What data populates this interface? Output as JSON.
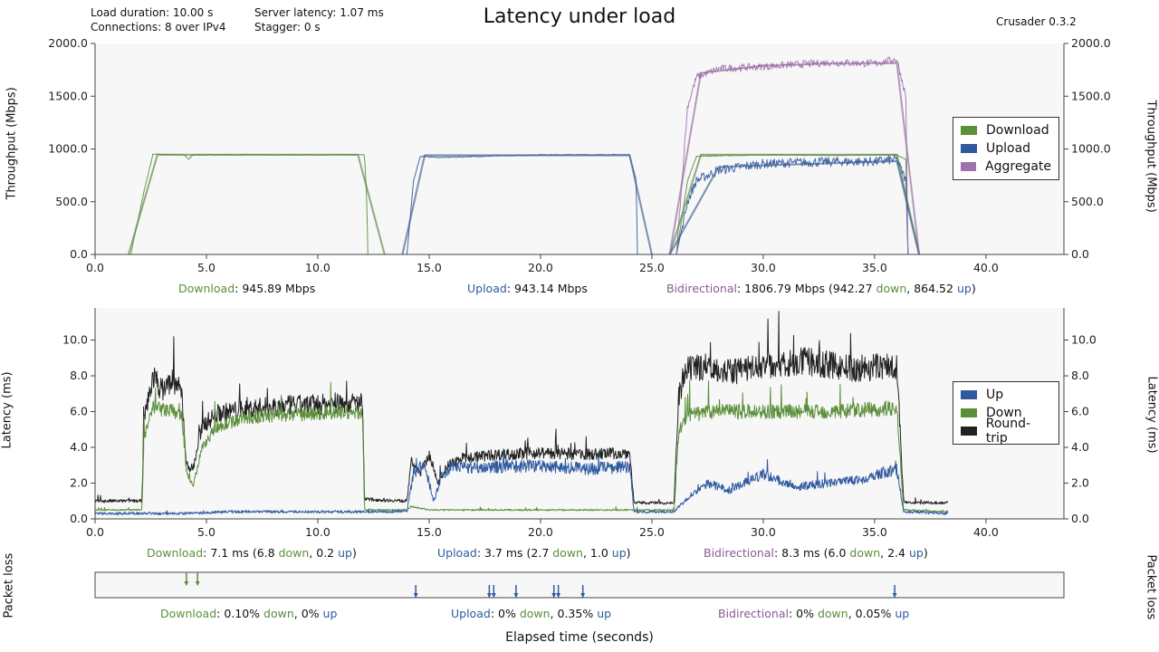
{
  "header": {
    "title": "Latency under load",
    "app_version": "Crusader 0.3.2",
    "load_duration": "Load duration: 10.00 s",
    "connections": "Connections: 8 over IPv4",
    "server_latency": "Server latency: 1.07 ms",
    "stagger": "Stagger: 0 s"
  },
  "colors": {
    "download": "#5b8f3a",
    "upload": "#2f5aa0",
    "aggregate": "#a070b0",
    "roundtrip": "#222222",
    "plot_bg": "#f7f7f7"
  },
  "throughput_summary": {
    "download_label": "Download",
    "download_value": ": 945.89 Mbps",
    "upload_label": "Upload",
    "upload_value": ": 943.14 Mbps",
    "bidir_label": "Bidirectional",
    "bidir_value": ": 1806.79 Mbps (942.27 ",
    "bidir_down": "down",
    "bidir_mid": ", 864.52 ",
    "bidir_up": "up",
    "bidir_end": ")"
  },
  "latency_summary": {
    "download_label": "Download",
    "download_value": ": 7.1 ms  (6.8 ",
    "download_down": "down",
    "download_mid": ", 0.2 ",
    "download_up": "up",
    "download_end": ")",
    "upload_label": "Upload",
    "upload_value": ": 3.7 ms  (2.7 ",
    "upload_down": "down",
    "upload_mid": ", 1.0 ",
    "upload_up": "up",
    "upload_end": ")",
    "bidir_label": "Bidirectional",
    "bidir_value": ": 8.3 ms  (6.0 ",
    "bidir_down": "down",
    "bidir_mid": ", 2.4 ",
    "bidir_up": "up",
    "bidir_end": ")"
  },
  "loss_summary": {
    "download_label": "Download",
    "download_value": ": 0.10% ",
    "download_down": "down",
    "download_mid": ", 0% ",
    "download_up": "up",
    "upload_label": "Upload",
    "upload_value": ": 0% ",
    "upload_down": "down",
    "upload_mid": ", 0.35% ",
    "upload_up": "up",
    "bidir_label": "Bidirectional",
    "bidir_value": ": 0% ",
    "bidir_down": "down",
    "bidir_mid": ", 0.05% ",
    "bidir_up": "up"
  },
  "throughput_legend": [
    "Download",
    "Upload",
    "Aggregate"
  ],
  "latency_legend": [
    "Up",
    "Down",
    "Round-trip"
  ],
  "chart_data": [
    {
      "type": "line",
      "title": "Latency under load",
      "xlabel": "Elapsed time (seconds)",
      "ylabel": "Throughput (Mbps)",
      "xlim": [
        0,
        43.5
      ],
      "ylim": [
        0,
        2000
      ],
      "x_ticks": [
        "0.0",
        "5.0",
        "10.0",
        "15.0",
        "20.0",
        "25.0",
        "30.0",
        "35.0",
        "40.0"
      ],
      "y_ticks": [
        "0.0",
        "500.0",
        "1000.0",
        "1500.0",
        "2000.0"
      ],
      "legend_position": "right",
      "series": [
        {
          "name": "Download",
          "x": [
            1.6,
            2.2,
            2.6,
            4.0,
            4.2,
            4.4,
            12.1,
            12.2,
            12.25
          ],
          "y": [
            0,
            600,
            950,
            945,
            900,
            945,
            945,
            500,
            0
          ]
        },
        {
          "name": "Download",
          "x": [
            26.1,
            26.6,
            27.0,
            30.0,
            33.0,
            36.0,
            36.4,
            36.5
          ],
          "y": [
            0,
            700,
            930,
            945,
            940,
            945,
            900,
            0
          ]
        },
        {
          "name": "Upload",
          "x": [
            14.0,
            14.3,
            14.6,
            15.5,
            20.0,
            24.0,
            24.3,
            24.35
          ],
          "y": [
            0,
            700,
            930,
            920,
            945,
            945,
            700,
            0
          ]
        },
        {
          "name": "Upload",
          "x": [
            26.1,
            26.6,
            27.0,
            28.0,
            30.0,
            33.0,
            35.0,
            36.0,
            36.4,
            36.5
          ],
          "y": [
            0,
            500,
            700,
            800,
            860,
            880,
            880,
            900,
            700,
            0
          ]
        },
        {
          "name": "Aggregate",
          "x": [
            26.1,
            26.6,
            27.0,
            28.0,
            30.0,
            33.0,
            35.0,
            36.0,
            36.4,
            36.5
          ],
          "y": [
            0,
            1400,
            1680,
            1760,
            1780,
            1820,
            1810,
            1850,
            1500,
            0
          ]
        }
      ],
      "smoothed_series": [
        {
          "name": "Download",
          "x": [
            1.5,
            2.8,
            11.8,
            13.0
          ],
          "y": [
            0,
            945,
            945,
            0
          ]
        },
        {
          "name": "Upload",
          "x": [
            13.8,
            14.8,
            24.0,
            25.0
          ],
          "y": [
            0,
            940,
            940,
            0
          ]
        },
        {
          "name": "Download",
          "x": [
            25.8,
            27.2,
            36.0,
            37.0
          ],
          "y": [
            0,
            945,
            945,
            0
          ]
        },
        {
          "name": "Upload",
          "x": [
            25.8,
            28.0,
            36.0,
            37.0
          ],
          "y": [
            0,
            830,
            885,
            0
          ]
        },
        {
          "name": "Aggregate",
          "x": [
            25.8,
            27.2,
            30.0,
            33.0,
            36.0,
            37.0
          ],
          "y": [
            0,
            1720,
            1790,
            1810,
            1815,
            0
          ]
        }
      ]
    },
    {
      "type": "line",
      "xlabel": "Elapsed time (seconds)",
      "ylabel": "Latency (ms)",
      "xlim": [
        0,
        43.5
      ],
      "ylim": [
        0,
        11.8
      ],
      "x_ticks": [
        "0.0",
        "5.0",
        "10.0",
        "15.0",
        "20.0",
        "25.0",
        "30.0",
        "35.0",
        "40.0"
      ],
      "y_ticks": [
        "0.0",
        "2.0",
        "4.0",
        "6.0",
        "8.0",
        "10.0"
      ],
      "legend_position": "right",
      "series": [
        {
          "name": "Round-trip",
          "x": [
            0,
            2.1,
            2.2,
            2.6,
            3.0,
            3.5,
            3.9,
            4.1,
            4.4,
            4.8,
            5.5,
            6.5,
            8.0,
            10.0,
            12.0,
            12.1,
            14.0,
            14.2,
            14.6,
            15.0,
            15.4,
            15.8,
            16.5,
            18.0,
            20.0,
            22.0,
            24.0,
            24.2,
            26.0,
            26.2,
            26.6,
            27.5,
            28.5,
            30.0,
            32.0,
            34.0,
            36.0,
            36.3,
            36.6,
            38.3
          ],
          "y": [
            1.0,
            1.0,
            5.5,
            8.0,
            7.2,
            7.8,
            7.0,
            3.0,
            2.8,
            5.2,
            5.9,
            6.1,
            6.3,
            6.4,
            6.5,
            1.1,
            1.0,
            3.2,
            2.6,
            3.6,
            2.0,
            3.0,
            3.4,
            3.6,
            3.7,
            3.6,
            3.7,
            0.9,
            0.9,
            6.8,
            8.3,
            8.6,
            8.2,
            8.6,
            8.8,
            8.4,
            8.6,
            1.0,
            0.9,
            0.9
          ]
        },
        {
          "name": "Down",
          "x": [
            0,
            2.1,
            2.2,
            2.6,
            3.5,
            3.9,
            4.1,
            4.4,
            4.8,
            5.5,
            6.5,
            8.0,
            10.0,
            12.0,
            12.1,
            14.0,
            14.2,
            14.6,
            15.0,
            16.0,
            20.0,
            24.0,
            24.2,
            26.0,
            26.2,
            26.6,
            28.0,
            30.0,
            33.0,
            36.0,
            36.3,
            38.3
          ],
          "y": [
            0.5,
            0.5,
            4.5,
            6.2,
            6.0,
            5.8,
            2.6,
            1.8,
            4.0,
            5.2,
            5.6,
            5.8,
            5.9,
            6.0,
            0.5,
            0.5,
            0.7,
            0.6,
            0.5,
            0.5,
            0.5,
            0.5,
            0.5,
            0.5,
            4.8,
            5.8,
            6.0,
            6.0,
            6.0,
            6.2,
            0.5,
            0.4
          ]
        },
        {
          "name": "Up",
          "x": [
            0,
            2.0,
            4.0,
            6.0,
            8.0,
            10.0,
            12.0,
            14.0,
            14.3,
            14.8,
            15.2,
            15.6,
            16.0,
            18.0,
            20.0,
            22.0,
            24.0,
            24.2,
            26.0,
            26.6,
            27.5,
            28.5,
            30.0,
            31.5,
            33.0,
            34.5,
            36.0,
            36.3,
            38.3
          ],
          "y": [
            0.3,
            0.3,
            0.3,
            0.4,
            0.4,
            0.4,
            0.4,
            0.4,
            2.6,
            3.0,
            1.0,
            2.5,
            2.9,
            2.9,
            3.0,
            2.8,
            2.9,
            0.4,
            0.4,
            1.2,
            2.0,
            1.6,
            2.5,
            1.8,
            2.0,
            2.2,
            2.8,
            0.4,
            0.3
          ]
        }
      ]
    },
    {
      "type": "scatter",
      "ylabel": "Packet loss",
      "xlim": [
        0,
        43.5
      ],
      "series": [
        {
          "name": "Down",
          "x": [
            4.1,
            4.6
          ]
        },
        {
          "name": "Up",
          "x": [
            14.4,
            17.7,
            17.9,
            18.9,
            20.6,
            20.8,
            21.9,
            35.9
          ]
        }
      ]
    }
  ]
}
